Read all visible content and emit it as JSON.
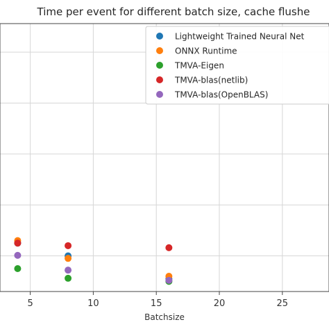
{
  "chart_data": {
    "type": "scatter",
    "title": "Time per event for different batch size, cache flushe",
    "xlabel": "Batchsize",
    "ylabel": "",
    "xlim": [
      2.6,
      28.7
    ],
    "ylim": [
      0.3,
      5.56
    ],
    "x_ticks": [
      5,
      10,
      15,
      20,
      25
    ],
    "y_gridlines": [
      1,
      2,
      3,
      4,
      5
    ],
    "grid": true,
    "legend_position": "top-right",
    "series": [
      {
        "name": "Lightweight Trained Neural Net",
        "color": "#1f77b4",
        "x": [
          4,
          8,
          16
        ],
        "y": [
          1.25,
          1.0,
          0.55
        ]
      },
      {
        "name": "ONNX Runtime",
        "color": "#ff7f0e",
        "x": [
          4,
          8,
          16
        ],
        "y": [
          1.3,
          0.95,
          0.6
        ]
      },
      {
        "name": "TMVA-Eigen",
        "color": "#2ca02c",
        "x": [
          4,
          8,
          16
        ],
        "y": [
          0.75,
          0.56,
          0.5
        ]
      },
      {
        "name": "TMVA-blas(netlib)",
        "color": "#d62728",
        "x": [
          4,
          8,
          16
        ],
        "y": [
          1.25,
          1.2,
          1.16
        ]
      },
      {
        "name": "TMVA-blas(OpenBLAS)",
        "color": "#9467bd",
        "x": [
          4,
          8,
          16
        ],
        "y": [
          1.01,
          0.72,
          0.52
        ]
      }
    ]
  }
}
